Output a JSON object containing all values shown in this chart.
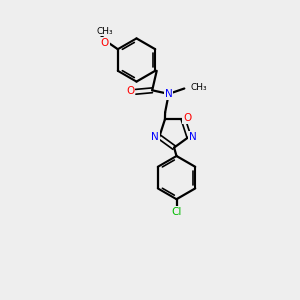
{
  "background_color": "#eeeeee",
  "bond_color": "#000000",
  "atom_colors": {
    "O": "#ff0000",
    "N": "#0000ff",
    "Cl": "#00bb00",
    "C": "#000000"
  },
  "figsize": [
    3.0,
    3.0
  ],
  "dpi": 100
}
